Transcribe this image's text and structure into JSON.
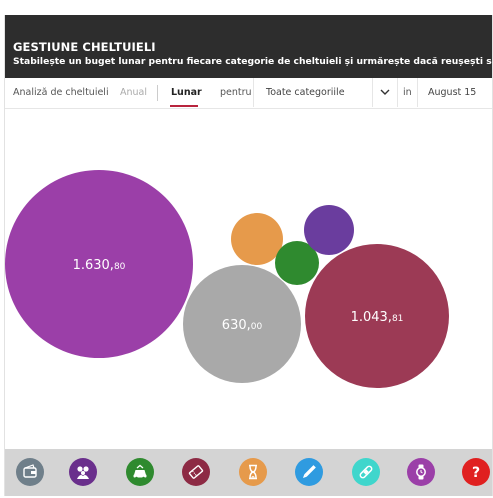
{
  "header": {
    "title": "GESTIUNE CHELTUIELI",
    "subtitle": "Stabilește un buget lunar pentru fiecare categorie de cheltuieli și urmărește dacă reușești să te încadrezi!"
  },
  "filters": {
    "analysis_label": "Analiză de cheltuieli",
    "annual_label": "Anual",
    "monthly_label": "Lunar",
    "for_label": "pentru",
    "category_selected": "Toate categoriile",
    "in_label": "in",
    "period_value": "August 15"
  },
  "chart_data": {
    "type": "bubble",
    "bubbles": [
      {
        "label_main": "1.630,",
        "label_decimals": "80",
        "value": 1630.8,
        "color": "#9b3fa8"
      },
      {
        "label_main": "630,",
        "label_decimals": "00",
        "value": 630.0,
        "color": "#a9a9a9"
      },
      {
        "label_main": "1.043,",
        "label_decimals": "81",
        "value": 1043.81,
        "color": "#9c3a55"
      },
      {
        "label_main": "",
        "label_decimals": "",
        "color": "#e69a4b"
      },
      {
        "label_main": "",
        "label_decimals": "",
        "color": "#2f8a2f"
      },
      {
        "label_main": "",
        "label_decimals": "",
        "color": "#6a3d9e"
      }
    ]
  },
  "categories": [
    {
      "icon": "wallet-icon",
      "color": "#6f7f8a"
    },
    {
      "icon": "family-icon",
      "color": "#6a2f8c"
    },
    {
      "icon": "car-icon",
      "color": "#2f8a2f"
    },
    {
      "icon": "ticket-icon",
      "color": "#8d2a44"
    },
    {
      "icon": "hourglass-icon",
      "color": "#e69a4b"
    },
    {
      "icon": "pen-icon",
      "color": "#2f9be0"
    },
    {
      "icon": "bandage-icon",
      "color": "#3fd6cc"
    },
    {
      "icon": "watch-icon",
      "color": "#9b3fa8"
    },
    {
      "icon": "question-icon",
      "color": "#e02020"
    }
  ]
}
